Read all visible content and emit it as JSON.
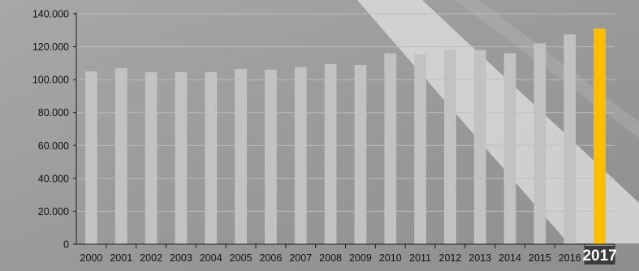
{
  "chart_data": {
    "type": "bar",
    "title": "",
    "xlabel": "",
    "ylabel": "",
    "categories": [
      "2000",
      "2001",
      "2002",
      "2003",
      "2004",
      "2005",
      "2006",
      "2007",
      "2008",
      "2009",
      "2010",
      "2011",
      "2012",
      "2013",
      "2014",
      "2015",
      "2016",
      "2017"
    ],
    "values": [
      105000,
      107000,
      104500,
      104500,
      104500,
      106500,
      106000,
      107500,
      109500,
      109000,
      116000,
      115500,
      118000,
      118000,
      116000,
      122000,
      127500,
      131000
    ],
    "highlight_category": "2017",
    "ylim": [
      0,
      140000
    ],
    "yticks": [
      0,
      20000,
      40000,
      60000,
      80000,
      100000,
      120000,
      140000
    ],
    "ytick_labels": [
      "0",
      "20.000",
      "40.000",
      "60.000",
      "80.000",
      "100.000",
      "120.000",
      "140.000"
    ],
    "grid": true,
    "legend": "none",
    "colors": {
      "bar": "#c2c2c2",
      "highlight_bar": "#ffbf00",
      "gridline": "#bdbdbd",
      "axis": "#1a1a1a",
      "highlight_label_bg": "#3b3b3b",
      "highlight_label_text": "#ffffff",
      "background": "#9c9c9c"
    }
  }
}
